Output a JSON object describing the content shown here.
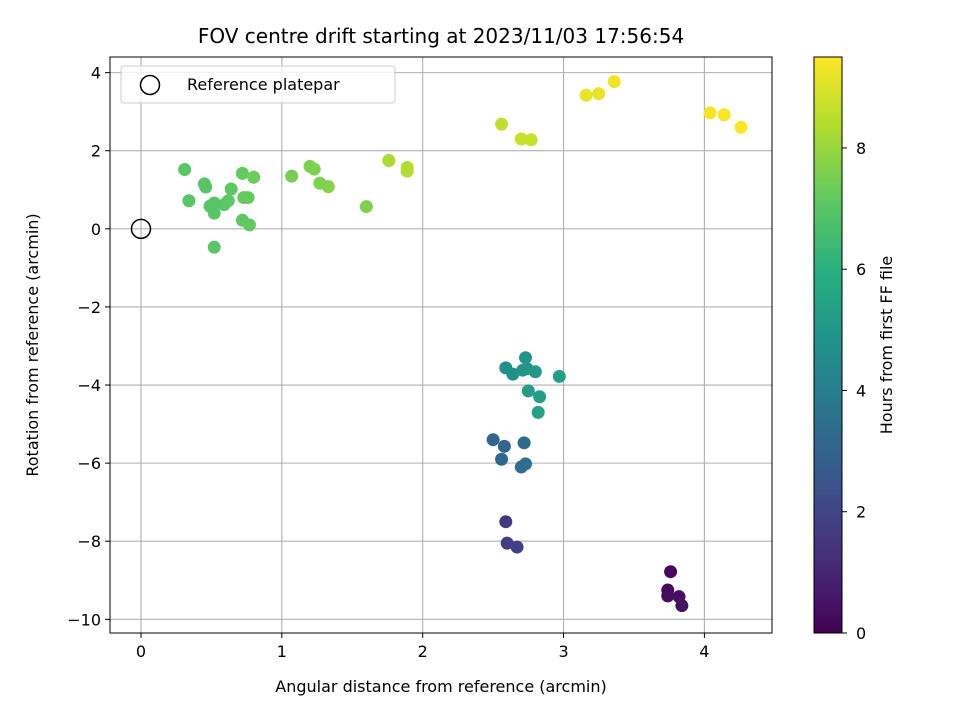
{
  "chart_data": {
    "type": "scatter",
    "title": "FOV centre drift starting at 2023/11/03 17:56:54",
    "xlabel": "Angular distance from reference (arcmin)",
    "ylabel": "Rotation from reference (arcmin)",
    "xlim": [
      -0.22,
      4.48
    ],
    "ylim": [
      -10.35,
      4.4
    ],
    "xticks": [
      0,
      1,
      2,
      3,
      4
    ],
    "yticks": [
      4,
      2,
      0,
      -2,
      -4,
      -6,
      -8,
      -10
    ],
    "grid": true,
    "legend": {
      "placement": "upper-left",
      "entries": [
        "Reference platepar"
      ]
    },
    "reference_point": {
      "x": 0,
      "y": 0,
      "label": "Reference platepar"
    },
    "colorbar": {
      "label": "Hours from first FF file",
      "range": [
        0,
        9.5
      ],
      "ticks": [
        0,
        2,
        4,
        6,
        8
      ],
      "colormap": "viridis"
    },
    "points": [
      {
        "x": 3.76,
        "y": -8.78,
        "h": 0.2
      },
      {
        "x": 3.74,
        "y": -9.25,
        "h": 0.3
      },
      {
        "x": 3.74,
        "y": -9.4,
        "h": 0.3
      },
      {
        "x": 3.82,
        "y": -9.42,
        "h": 0.4
      },
      {
        "x": 3.84,
        "y": -9.65,
        "h": 0.5
      },
      {
        "x": 2.59,
        "y": -7.5,
        "h": 1.6
      },
      {
        "x": 2.6,
        "y": -8.05,
        "h": 1.7
      },
      {
        "x": 2.67,
        "y": -8.15,
        "h": 1.8
      },
      {
        "x": 2.5,
        "y": -5.4,
        "h": 3.0
      },
      {
        "x": 2.58,
        "y": -5.57,
        "h": 3.1
      },
      {
        "x": 2.56,
        "y": -5.9,
        "h": 3.2
      },
      {
        "x": 2.72,
        "y": -5.48,
        "h": 3.3
      },
      {
        "x": 2.7,
        "y": -6.1,
        "h": 3.4
      },
      {
        "x": 2.73,
        "y": -6.02,
        "h": 3.5
      },
      {
        "x": 2.59,
        "y": -3.56,
        "h": 4.7
      },
      {
        "x": 2.64,
        "y": -3.72,
        "h": 4.8
      },
      {
        "x": 2.73,
        "y": -3.3,
        "h": 4.9
      },
      {
        "x": 2.71,
        "y": -3.62,
        "h": 5.0
      },
      {
        "x": 2.74,
        "y": -3.58,
        "h": 5.0
      },
      {
        "x": 2.8,
        "y": -3.66,
        "h": 5.1
      },
      {
        "x": 2.75,
        "y": -4.15,
        "h": 5.2
      },
      {
        "x": 2.83,
        "y": -4.3,
        "h": 5.3
      },
      {
        "x": 2.82,
        "y": -4.7,
        "h": 5.4
      },
      {
        "x": 2.97,
        "y": -3.78,
        "h": 5.2
      },
      {
        "x": 0.31,
        "y": 1.52,
        "h": 7.0
      },
      {
        "x": 0.34,
        "y": 0.72,
        "h": 7.0
      },
      {
        "x": 0.45,
        "y": 1.15,
        "h": 7.0
      },
      {
        "x": 0.46,
        "y": 1.07,
        "h": 7.0
      },
      {
        "x": 0.49,
        "y": 0.58,
        "h": 7.0
      },
      {
        "x": 0.52,
        "y": 0.66,
        "h": 7.0
      },
      {
        "x": 0.52,
        "y": 0.4,
        "h": 7.0
      },
      {
        "x": 0.52,
        "y": -0.47,
        "h": 7.0
      },
      {
        "x": 0.59,
        "y": 0.62,
        "h": 7.0
      },
      {
        "x": 0.62,
        "y": 0.72,
        "h": 7.1
      },
      {
        "x": 0.64,
        "y": 1.02,
        "h": 7.1
      },
      {
        "x": 0.72,
        "y": 0.22,
        "h": 7.1
      },
      {
        "x": 0.72,
        "y": 1.42,
        "h": 7.2
      },
      {
        "x": 0.73,
        "y": 0.8,
        "h": 7.2
      },
      {
        "x": 0.76,
        "y": 0.8,
        "h": 7.2
      },
      {
        "x": 0.77,
        "y": 0.1,
        "h": 7.2
      },
      {
        "x": 0.8,
        "y": 1.32,
        "h": 7.3
      },
      {
        "x": 1.07,
        "y": 1.35,
        "h": 7.5
      },
      {
        "x": 1.2,
        "y": 1.6,
        "h": 7.6
      },
      {
        "x": 1.23,
        "y": 1.53,
        "h": 7.6
      },
      {
        "x": 1.27,
        "y": 1.17,
        "h": 7.6
      },
      {
        "x": 1.33,
        "y": 1.08,
        "h": 7.7
      },
      {
        "x": 1.6,
        "y": 0.57,
        "h": 7.6
      },
      {
        "x": 1.76,
        "y": 1.75,
        "h": 8.3
      },
      {
        "x": 1.89,
        "y": 1.57,
        "h": 8.4
      },
      {
        "x": 1.89,
        "y": 1.48,
        "h": 8.4
      },
      {
        "x": 2.56,
        "y": 2.68,
        "h": 8.6
      },
      {
        "x": 2.7,
        "y": 2.3,
        "h": 8.7
      },
      {
        "x": 2.77,
        "y": 2.28,
        "h": 8.7
      },
      {
        "x": 3.16,
        "y": 3.42,
        "h": 9.2
      },
      {
        "x": 3.25,
        "y": 3.46,
        "h": 9.2
      },
      {
        "x": 3.36,
        "y": 3.77,
        "h": 9.3
      },
      {
        "x": 4.04,
        "y": 2.97,
        "h": 9.4
      },
      {
        "x": 4.14,
        "y": 2.92,
        "h": 9.4
      },
      {
        "x": 4.26,
        "y": 2.6,
        "h": 9.5
      }
    ]
  }
}
